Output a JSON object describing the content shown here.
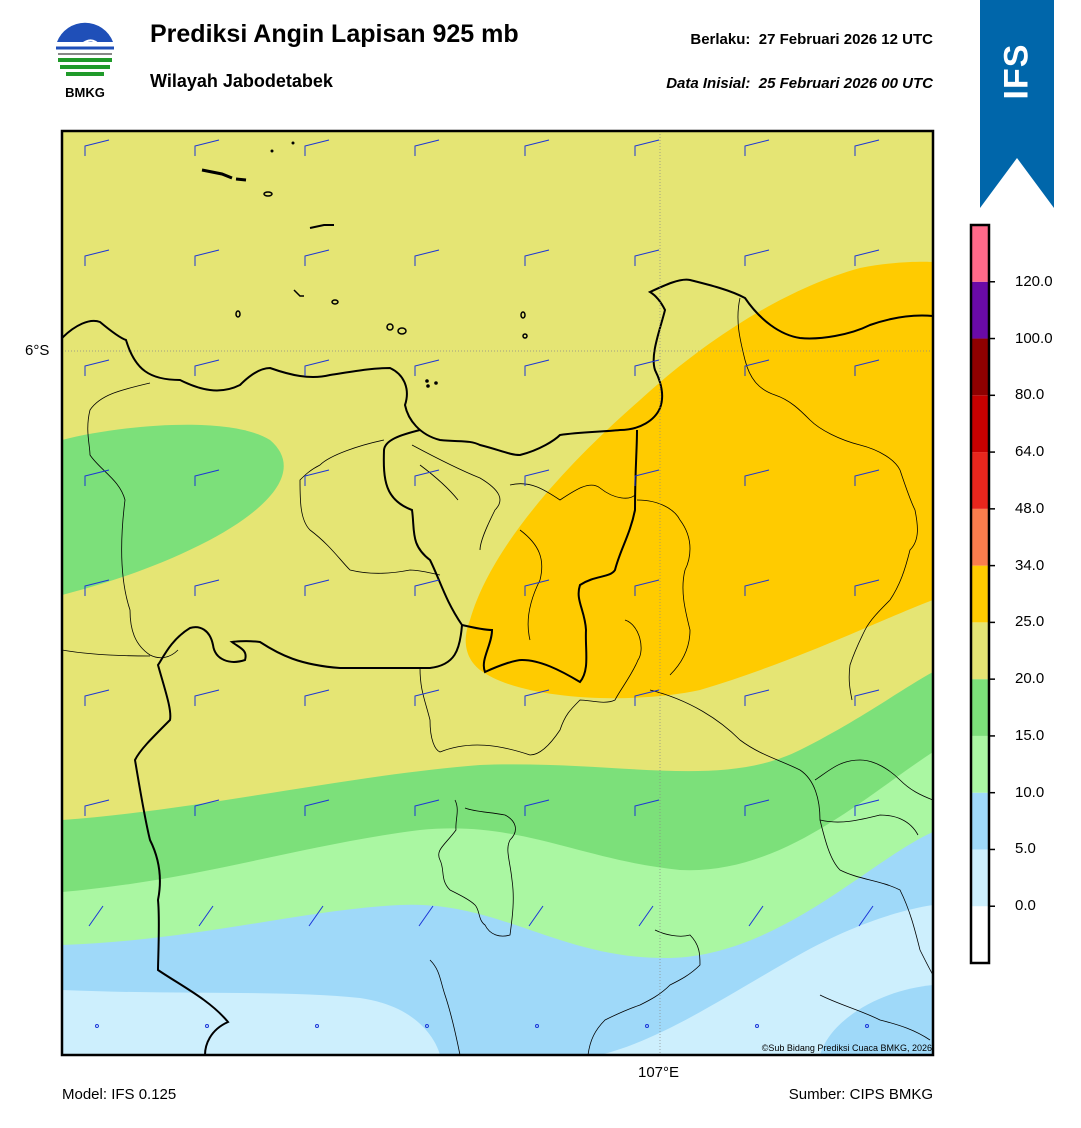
{
  "header": {
    "title": "Prediksi Angin Lapisan 925 mb",
    "subtitle": "Wilayah Jabodetabek",
    "valid_label": "Berlaku:",
    "valid_time": "27 Februari 2026 12 UTC",
    "init_label": "Data Inisial:",
    "init_time": "25 Februari 2026 00 UTC",
    "logo_text": "BMKG",
    "banner_text": "IFS"
  },
  "map": {
    "lat_label": "6°S",
    "lon_label": "107°E",
    "copyright": "©Sub Bidang Prediksi Cuaca BMKG, 2026"
  },
  "colorbar": {
    "labels": [
      "120.0",
      "100.0",
      "80.0",
      "64.0",
      "48.0",
      "34.0",
      "25.0",
      "20.0",
      "15.0",
      "10.0",
      "5.0",
      "0.0"
    ],
    "colors": [
      "#ffffff",
      "#cdeffd",
      "#9fd9f9",
      "#aaf7a2",
      "#7ce07a",
      "#e5e574",
      "#ffcb00",
      "#fa7d4d",
      "#e8261d",
      "#c60000",
      "#8f0000",
      "#6a0aa7",
      "#ff6a8a"
    ]
  },
  "footer": {
    "model": "Model: IFS 0.125",
    "source": "Sumber: CIPS BMKG"
  },
  "style": {
    "banner_color": "#0066aa",
    "wind_barb_color": "#1a35d8"
  }
}
